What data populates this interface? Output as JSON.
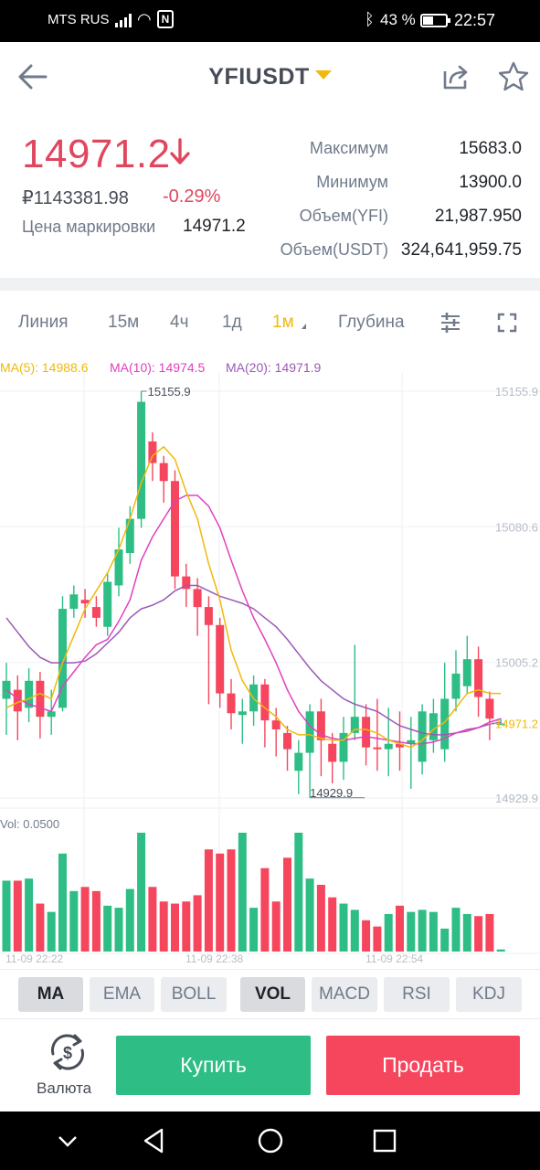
{
  "status_bar": {
    "carrier": "MTS RUS",
    "battery": "43 %",
    "time": "22:57"
  },
  "header": {
    "pair": "YFIUSDT",
    "icons": [
      "back-arrow-icon",
      "share-icon",
      "star-icon"
    ]
  },
  "ticker": {
    "last_price": "14971.2",
    "rub_price": "₽1143381.98",
    "change_pct": "-0.29%",
    "mark_label": "Цена маркировки",
    "mark_price": "14971.2",
    "stats": [
      {
        "label": "Максимум",
        "value": "15683.0"
      },
      {
        "label": "Минимум",
        "value": "13900.0"
      },
      {
        "label": "Объем(YFI)",
        "value": "21,987.950"
      },
      {
        "label": "Объем(USDT)",
        "value": "324,641,959.75"
      }
    ],
    "down_color": "#e0465e"
  },
  "timeframes": {
    "items": [
      "Линия",
      "15м",
      "4ч",
      "1д",
      "1м",
      "Глубина"
    ],
    "active": "1м",
    "icons": [
      "settings-sliders-icon",
      "fullscreen-icon"
    ]
  },
  "chart_data": {
    "type": "candlestick",
    "ma_legend": [
      {
        "label": "MA(5): 14988.6",
        "color": "#f0b90b"
      },
      {
        "label": "MA(10): 14974.5",
        "color": "#e040bf"
      },
      {
        "label": "MA(20): 14971.9",
        "color": "#9b59b6"
      }
    ],
    "price_axis": [
      "15155.9",
      "15080.6",
      "15005.2",
      "14929.9"
    ],
    "ylim": [
      14929.9,
      15155.9
    ],
    "high_label": "15155.9",
    "low_label": "14929.9",
    "current_price_label": "14971.2",
    "x_labels": [
      "11-09 22:22",
      "11-09 22:38",
      "11-09 22:54"
    ],
    "volume_label": "Vol: 0.0500",
    "candles": [
      {
        "o": 14985,
        "c": 14995,
        "h": 15005,
        "l": 14965
      },
      {
        "o": 14990,
        "c": 14978,
        "h": 14998,
        "l": 14962
      },
      {
        "o": 14980,
        "c": 14995,
        "h": 15002,
        "l": 14972
      },
      {
        "o": 14995,
        "c": 14975,
        "h": 15000,
        "l": 14963
      },
      {
        "o": 14975,
        "c": 14978,
        "h": 14990,
        "l": 14965
      },
      {
        "o": 14980,
        "c": 15035,
        "h": 15042,
        "l": 14978
      },
      {
        "o": 15035,
        "c": 15043,
        "h": 15048,
        "l": 15030
      },
      {
        "o": 15040,
        "c": 15038,
        "h": 15046,
        "l": 15030
      },
      {
        "o": 15036,
        "c": 15030,
        "h": 15042,
        "l": 15025
      },
      {
        "o": 15025,
        "c": 15050,
        "h": 15055,
        "l": 15020
      },
      {
        "o": 15048,
        "c": 15068,
        "h": 15080,
        "l": 15042
      },
      {
        "o": 15066,
        "c": 15085,
        "h": 15092,
        "l": 15060
      },
      {
        "o": 15085,
        "c": 15150,
        "h": 15155.9,
        "l": 15080
      },
      {
        "o": 15128,
        "c": 15116,
        "h": 15133,
        "l": 15106
      },
      {
        "o": 15116,
        "c": 15106,
        "h": 15120,
        "l": 15094
      },
      {
        "o": 15106,
        "c": 15053,
        "h": 15112,
        "l": 15046
      },
      {
        "o": 15053,
        "c": 15046,
        "h": 15060,
        "l": 15036
      },
      {
        "o": 15046,
        "c": 15036,
        "h": 15052,
        "l": 15020
      },
      {
        "o": 15036,
        "c": 15026,
        "h": 15042,
        "l": 14982
      },
      {
        "o": 15026,
        "c": 14988,
        "h": 15030,
        "l": 14980
      },
      {
        "o": 14988,
        "c": 14977,
        "h": 14996,
        "l": 14968
      },
      {
        "o": 14976,
        "c": 14978,
        "h": 14985,
        "l": 14960
      },
      {
        "o": 14978,
        "c": 14993,
        "h": 14998,
        "l": 14970
      },
      {
        "o": 14993,
        "c": 14973,
        "h": 14996,
        "l": 14958
      },
      {
        "o": 14973,
        "c": 14968,
        "h": 14980,
        "l": 14953
      },
      {
        "o": 14966,
        "c": 14957,
        "h": 14970,
        "l": 14945
      },
      {
        "o": 14945,
        "c": 14955,
        "h": 14962,
        "l": 14932
      },
      {
        "o": 14955,
        "c": 14978,
        "h": 14982,
        "l": 14930
      },
      {
        "o": 14978,
        "c": 14962,
        "h": 14985,
        "l": 14942
      },
      {
        "o": 14960,
        "c": 14950,
        "h": 14966,
        "l": 14938
      },
      {
        "o": 14950,
        "c": 14966,
        "h": 14975,
        "l": 14940
      },
      {
        "o": 14966,
        "c": 14975,
        "h": 15015,
        "l": 14962
      },
      {
        "o": 14975,
        "c": 14958,
        "h": 14982,
        "l": 14948
      },
      {
        "o": 14958,
        "c": 14957,
        "h": 14985,
        "l": 14945
      },
      {
        "o": 14957,
        "c": 14960,
        "h": 14980,
        "l": 14942
      },
      {
        "o": 14960,
        "c": 14958,
        "h": 14978,
        "l": 14945
      },
      {
        "o": 14960,
        "c": 14962,
        "h": 14975,
        "l": 14935
      },
      {
        "o": 14950,
        "c": 14978,
        "h": 14982,
        "l": 14943
      },
      {
        "o": 14962,
        "c": 14977,
        "h": 14985,
        "l": 14955
      },
      {
        "o": 14957,
        "c": 14985,
        "h": 15005,
        "l": 14950
      },
      {
        "o": 14985,
        "c": 14999,
        "h": 15012,
        "l": 14978
      },
      {
        "o": 14992,
        "c": 15007,
        "h": 15020,
        "l": 14988
      },
      {
        "o": 15007,
        "c": 14986,
        "h": 15014,
        "l": 14975
      },
      {
        "o": 14985,
        "c": 14974,
        "h": 14989,
        "l": 14962
      },
      {
        "o": 14971,
        "c": 14971.2,
        "h": 14974,
        "l": 14971
      }
    ],
    "volumes": [
      0.034,
      0.034,
      0.035,
      0.023,
      0.019,
      0.047,
      0.029,
      0.031,
      0.029,
      0.022,
      0.021,
      0.03,
      0.057,
      0.031,
      0.024,
      0.023,
      0.024,
      0.027,
      0.049,
      0.047,
      0.049,
      0.057,
      0.021,
      0.04,
      0.024,
      0.045,
      0.057,
      0.035,
      0.032,
      0.026,
      0.023,
      0.02,
      0.015,
      0.012,
      0.018,
      0.022,
      0.019,
      0.02,
      0.019,
      0.011,
      0.021,
      0.018,
      0.017,
      0.018,
      0.001
    ],
    "ma5": [
      14980,
      14983,
      14985,
      14988,
      14985,
      15005,
      15020,
      15035,
      15045,
      15055,
      15068,
      15085,
      15105,
      15120,
      15125,
      15118,
      15100,
      15085,
      15060,
      15040,
      15012,
      14995,
      14985,
      14980,
      14975,
      14968,
      14965,
      14965,
      14963,
      14962,
      14962,
      14968,
      14968,
      14966,
      14962,
      14960,
      14958,
      14962,
      14968,
      14972,
      14980,
      14988,
      14990,
      14988,
      14988
    ],
    "ma10": [
      14990,
      14985,
      14982,
      14980,
      14978,
      14992,
      15000,
      15008,
      15015,
      15018,
      15028,
      15040,
      15062,
      15075,
      15085,
      15095,
      15098,
      15098,
      15092,
      15080,
      15062,
      15045,
      15030,
      15018,
      15005,
      14990,
      14978,
      14970,
      14965,
      14963,
      14962,
      14963,
      14964,
      14963,
      14962,
      14961,
      14960,
      14960,
      14961,
      14963,
      14966,
      14968,
      14969,
      14972,
      14974
    ],
    "ma20": [
      15030,
      15022,
      15014,
      15008,
      15005,
      15005,
      15005,
      15006,
      15010,
      15016,
      15022,
      15030,
      15035,
      15037,
      15040,
      15045,
      15048,
      15048,
      15045,
      15042,
      15040,
      15038,
      15035,
      15030,
      15025,
      15018,
      15010,
      15002,
      14995,
      14990,
      14985,
      14982,
      14980,
      14978,
      14974,
      14970,
      14968,
      14966,
      14965,
      14965,
      14966,
      14967,
      14969,
      14971,
      14971.9
    ],
    "colors": {
      "up": "#2ebd85",
      "down": "#f6465d",
      "ma5": "#f0b90b",
      "ma10": "#e040bf",
      "ma20": "#9b59b6"
    }
  },
  "indicators": {
    "items": [
      "MA",
      "EMA",
      "BOLL",
      "VOL",
      "MACD",
      "RSI",
      "KDJ"
    ],
    "selected": [
      "MA",
      "VOL"
    ]
  },
  "actions": {
    "currency_label": "Валюта",
    "buy": "Купить",
    "sell": "Продать",
    "buy_color": "#2ebd85",
    "sell_color": "#f6465d"
  }
}
